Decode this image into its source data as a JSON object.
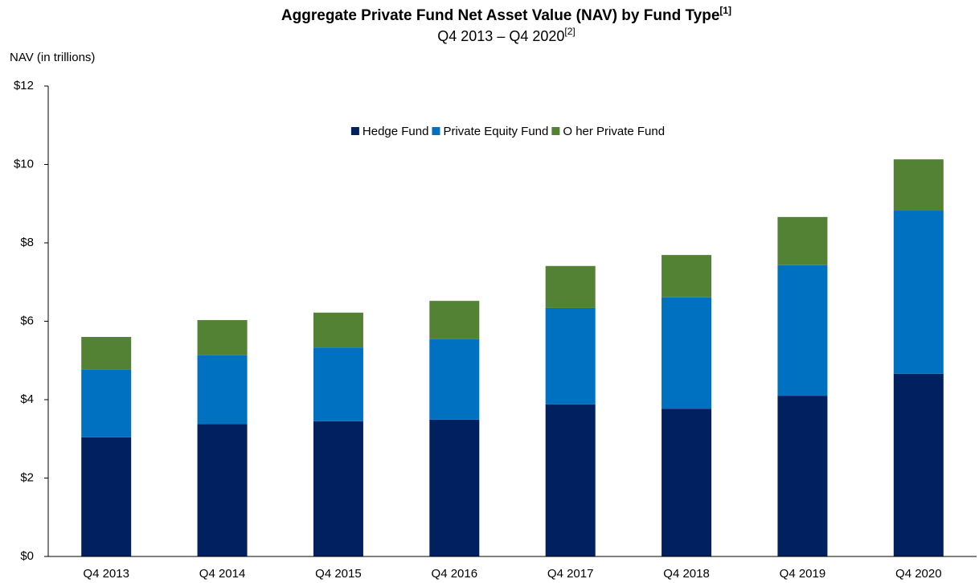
{
  "chart_data": {
    "type": "stacked_bar",
    "title": "Aggregate Private Fund Net Asset Value (NAV) by Fund Type",
    "title_note": "[1]",
    "subtitle": "Q4 2013 – Q4 2020",
    "subtitle_note": "[2]",
    "y_label": "NAV (in trillions)",
    "categories": [
      "Q4 2013",
      "Q4 2014",
      "Q4 2015",
      "Q4 2016",
      "Q4 2017",
      "Q4 2018",
      "Q4 2019",
      "Q4 2020"
    ],
    "series": [
      {
        "name": "Hedge Fund",
        "color": "#002060",
        "values": [
          3.04,
          3.38,
          3.45,
          3.49,
          3.88,
          3.77,
          4.1,
          4.66
        ]
      },
      {
        "name": "Private Equity Fund",
        "color": "#0070c0",
        "values": [
          1.72,
          1.75,
          1.88,
          2.05,
          2.46,
          2.84,
          3.33,
          4.16
        ]
      },
      {
        "name": "O her Private Fund",
        "color": "#548235",
        "values": [
          0.84,
          0.9,
          0.89,
          0.98,
          1.07,
          1.08,
          1.23,
          1.31
        ]
      }
    ],
    "ylim": [
      0,
      12
    ],
    "yticks": [
      {
        "value": 0,
        "label": "$0"
      },
      {
        "value": 2,
        "label": "$2"
      },
      {
        "value": 4,
        "label": "$4"
      },
      {
        "value": 6,
        "label": "$6"
      },
      {
        "value": 8,
        "label": "$8"
      },
      {
        "value": 10,
        "label": "$10"
      },
      {
        "value": 12,
        "label": "$12"
      }
    ],
    "legend": "top"
  }
}
